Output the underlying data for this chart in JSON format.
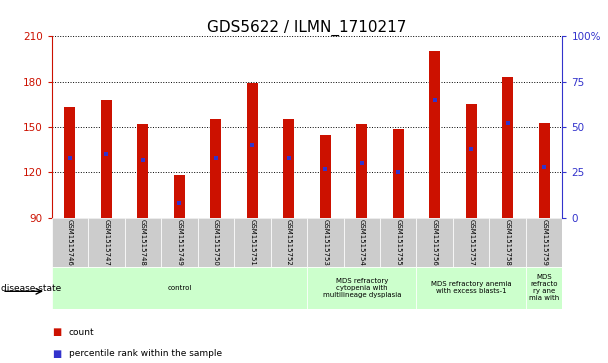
{
  "title": "GDS5622 / ILMN_1710217",
  "samples": [
    "GSM1515746",
    "GSM1515747",
    "GSM1515748",
    "GSM1515749",
    "GSM1515750",
    "GSM1515751",
    "GSM1515752",
    "GSM1515753",
    "GSM1515754",
    "GSM1515755",
    "GSM1515756",
    "GSM1515757",
    "GSM1515758",
    "GSM1515759"
  ],
  "counts": [
    163,
    168,
    152,
    118,
    155,
    179,
    155,
    145,
    152,
    149,
    200,
    165,
    183,
    153
  ],
  "percentile_ranks": [
    33,
    35,
    32,
    8,
    33,
    40,
    33,
    27,
    30,
    25,
    65,
    38,
    52,
    28
  ],
  "ylim_left": [
    90,
    210
  ],
  "ylim_right": [
    0,
    100
  ],
  "yticks_left": [
    90,
    120,
    150,
    180,
    210
  ],
  "yticks_right": [
    0,
    25,
    50,
    75,
    100
  ],
  "bar_color": "#CC1100",
  "dot_color": "#3333CC",
  "bar_width": 0.3,
  "grid_color": "#000000",
  "disease_groups": [
    {
      "label": "control",
      "start": 0,
      "end": 7
    },
    {
      "label": "MDS refractory\ncytopenia with\nmultilineage dysplasia",
      "start": 7,
      "end": 10
    },
    {
      "label": "MDS refractory anemia\nwith excess blasts-1",
      "start": 10,
      "end": 13
    },
    {
      "label": "MDS\nrefracto\nry ane\nmia with",
      "start": 13,
      "end": 14
    }
  ],
  "legend_count_color": "#CC1100",
  "legend_dot_color": "#3333CC",
  "sample_bg_color": "#CCCCCC",
  "disease_bg_color": "#CCFFCC",
  "title_fontsize": 11,
  "axis_color_left": "#CC1100",
  "axis_color_right": "#3333CC"
}
